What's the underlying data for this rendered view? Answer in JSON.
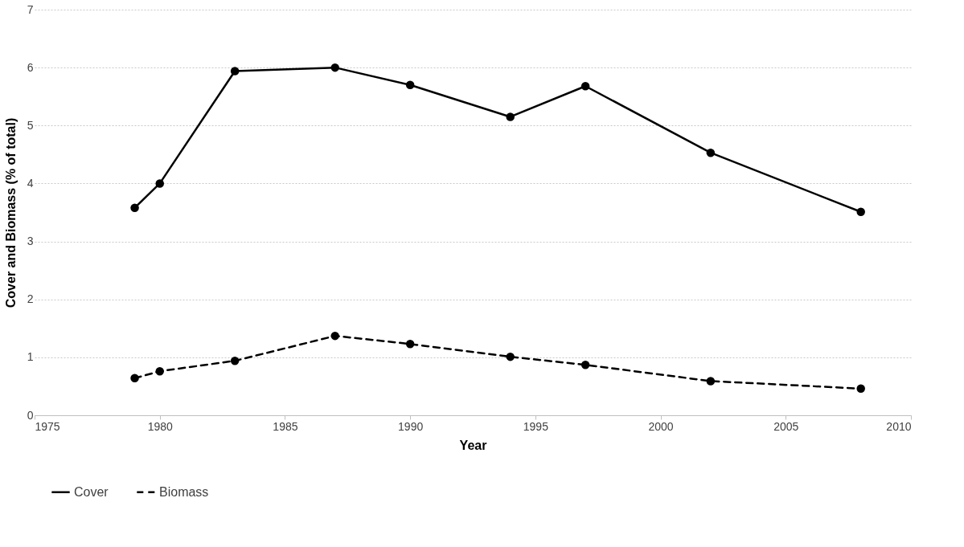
{
  "chart_data": {
    "type": "line",
    "xlabel": "Year",
    "ylabel": "Cover and Biomass (% of total)",
    "x": [
      1979,
      1980,
      1983,
      1987,
      1990,
      1994,
      1997,
      2002,
      2008
    ],
    "series": [
      {
        "name": "Cover",
        "color": "#000000",
        "line_style": "solid",
        "values": [
          3.58,
          4.0,
          5.94,
          6.0,
          5.7,
          5.15,
          5.68,
          4.53,
          3.51
        ]
      },
      {
        "name": "Biomass",
        "color": "#000000",
        "line_style": "dashed",
        "values": [
          0.64,
          0.76,
          0.94,
          1.37,
          1.23,
          1.01,
          0.87,
          0.59,
          0.46
        ]
      }
    ],
    "xlim": [
      1975,
      2010
    ],
    "xticks": [
      1975,
      1980,
      1985,
      1990,
      1995,
      2000,
      2005,
      2010
    ],
    "ylim": [
      0,
      7
    ],
    "yticks": [
      0,
      1,
      2,
      3,
      4,
      5,
      6,
      7
    ],
    "grid": "y",
    "legend": "bottom",
    "marker": "circle"
  }
}
